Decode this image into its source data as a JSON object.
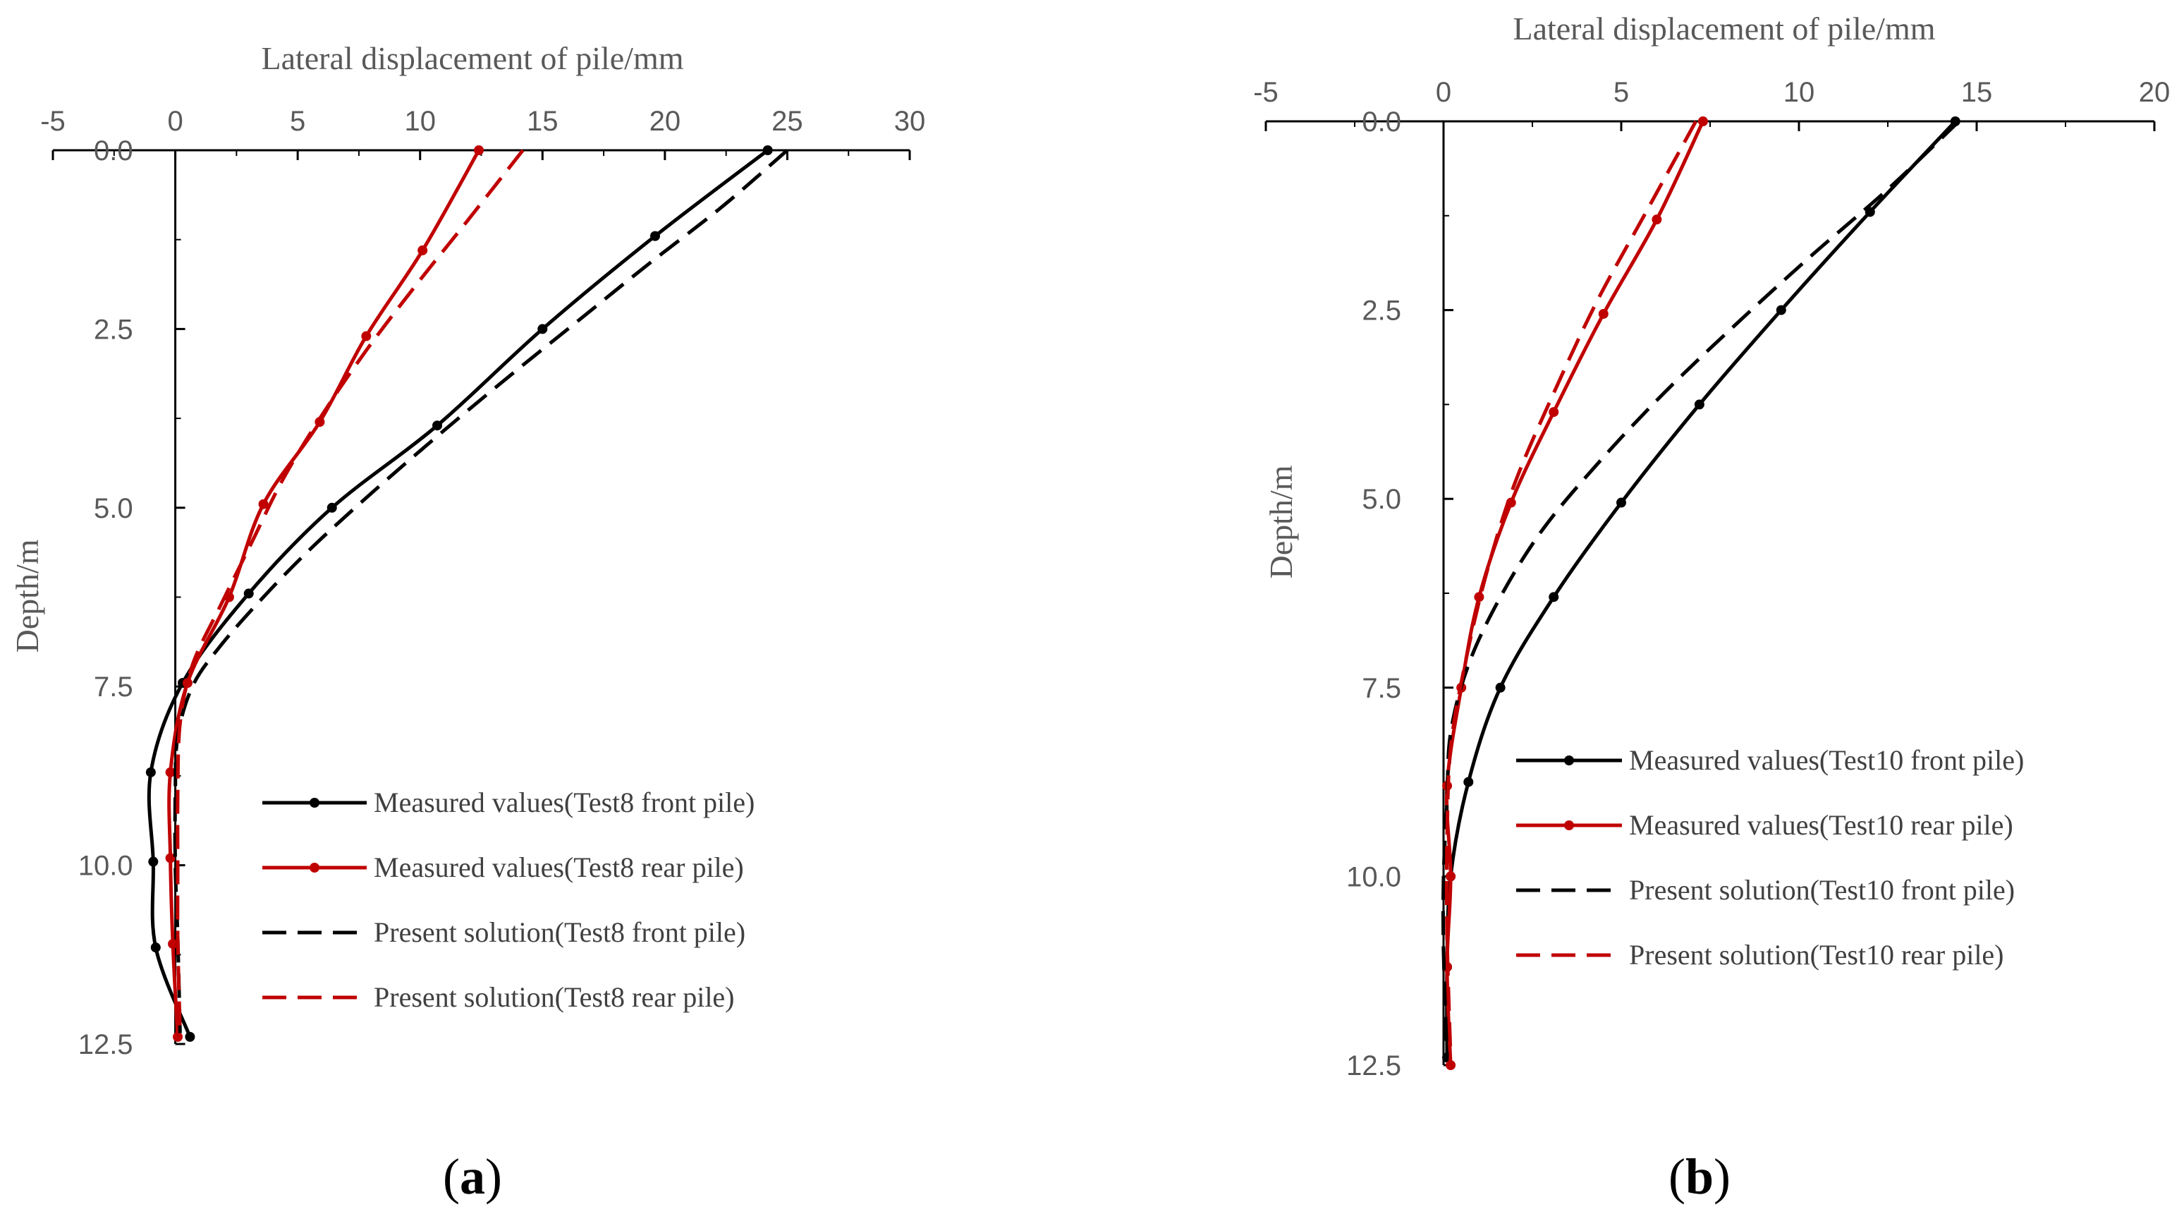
{
  "panels": [
    {
      "label": "a",
      "chart_data": {
        "type": "line",
        "title": "",
        "xlabel": "Lateral displacement of pile/mm",
        "ylabel": "Depth/m",
        "xlim": [
          -5,
          30
        ],
        "ylim": [
          0,
          12.5
        ],
        "x_ticks": [
          "-5",
          "0",
          "5",
          "10",
          "15",
          "20",
          "25",
          "30"
        ],
        "y_ticks": [
          "0.0",
          "2.5",
          "5.0",
          "7.5",
          "10.0",
          "12.5"
        ],
        "x_tick_values": [
          -5,
          0,
          5,
          10,
          15,
          20,
          25,
          30
        ],
        "y_tick_values": [
          0,
          2.5,
          5,
          7.5,
          10,
          12.5
        ],
        "y_inverted": true,
        "legend_position": "bottom-right",
        "series": [
          {
            "name": "Measured values(Test8 front pile)",
            "color": "#000000",
            "style": "solid",
            "markers": true,
            "points": [
              [
                24.2,
                0
              ],
              [
                19.6,
                1.2
              ],
              [
                15.0,
                2.5
              ],
              [
                10.7,
                3.85
              ],
              [
                6.4,
                5.0
              ],
              [
                3.0,
                6.2
              ],
              [
                0.3,
                7.45
              ],
              [
                -1.0,
                8.7
              ],
              [
                -0.9,
                9.95
              ],
              [
                -0.8,
                11.15
              ],
              [
                0.6,
                12.4
              ]
            ]
          },
          {
            "name": "Measured values(Test8 rear pile)",
            "color": "#C00000",
            "style": "solid",
            "markers": true,
            "points": [
              [
                12.4,
                0
              ],
              [
                10.1,
                1.4
              ],
              [
                7.8,
                2.6
              ],
              [
                5.9,
                3.8
              ],
              [
                3.6,
                4.95
              ],
              [
                2.2,
                6.25
              ],
              [
                0.5,
                7.45
              ],
              [
                -0.2,
                8.7
              ],
              [
                -0.2,
                9.9
              ],
              [
                -0.1,
                11.1
              ],
              [
                0.1,
                12.4
              ]
            ]
          },
          {
            "name": "Present solution(Test8 front pile)",
            "color": "#000000",
            "style": "dashed",
            "markers": false,
            "points": [
              [
                25.0,
                0
              ],
              [
                22.3,
                0.8
              ],
              [
                19.3,
                1.6
              ],
              [
                16.4,
                2.4
              ],
              [
                13.5,
                3.2
              ],
              [
                10.7,
                4.0
              ],
              [
                8.0,
                4.8
              ],
              [
                5.6,
                5.55
              ],
              [
                3.6,
                6.25
              ],
              [
                1.8,
                6.95
              ],
              [
                0.7,
                7.5
              ],
              [
                0.1,
                8.2
              ],
              [
                0.0,
                9.0
              ],
              [
                0.0,
                10.0
              ],
              [
                0.1,
                11.0
              ],
              [
                0.2,
                12.4
              ]
            ]
          },
          {
            "name": "Present solution(Test8 rear pile)",
            "color": "#C00000",
            "style": "dashed",
            "markers": false,
            "points": [
              [
                14.2,
                0
              ],
              [
                11.9,
                1.0
              ],
              [
                9.8,
                1.9
              ],
              [
                7.8,
                2.8
              ],
              [
                6.0,
                3.7
              ],
              [
                4.4,
                4.6
              ],
              [
                3.1,
                5.5
              ],
              [
                1.8,
                6.4
              ],
              [
                0.7,
                7.2
              ],
              [
                0.2,
                8.0
              ],
              [
                0.1,
                9.0
              ],
              [
                0.1,
                10.0
              ],
              [
                0.1,
                11.0
              ],
              [
                0.2,
                12.4
              ]
            ]
          }
        ]
      }
    },
    {
      "label": "b",
      "chart_data": {
        "type": "line",
        "title": "",
        "xlabel": "Lateral displacement of pile/mm",
        "ylabel": "Depth/m",
        "xlim": [
          -5,
          20
        ],
        "ylim": [
          0,
          12.5
        ],
        "x_ticks": [
          "-5",
          "0",
          "5",
          "10",
          "15",
          "20"
        ],
        "y_ticks": [
          "0.0",
          "2.5",
          "5.0",
          "7.5",
          "10.0",
          "12.5"
        ],
        "x_tick_values": [
          -5,
          0,
          5,
          10,
          15,
          20
        ],
        "y_tick_values": [
          0,
          2.5,
          5,
          7.5,
          10,
          12.5
        ],
        "y_inverted": true,
        "legend_position": "bottom-right",
        "series": [
          {
            "name": "Measured values(Test10 front pile)",
            "color": "#000000",
            "style": "solid",
            "markers": true,
            "points": [
              [
                14.4,
                0
              ],
              [
                12.0,
                1.2
              ],
              [
                9.5,
                2.5
              ],
              [
                7.2,
                3.75
              ],
              [
                5.0,
                5.05
              ],
              [
                3.1,
                6.3
              ],
              [
                1.6,
                7.5
              ],
              [
                0.7,
                8.75
              ],
              [
                0.2,
                10.0
              ],
              [
                0.1,
                11.2
              ],
              [
                0.1,
                12.4
              ]
            ]
          },
          {
            "name": "Measured values(Test10 rear pile)",
            "color": "#C00000",
            "style": "solid",
            "markers": true,
            "points": [
              [
                7.3,
                0
              ],
              [
                6.0,
                1.3
              ],
              [
                4.5,
                2.55
              ],
              [
                3.1,
                3.85
              ],
              [
                1.9,
                5.05
              ],
              [
                1.0,
                6.3
              ],
              [
                0.5,
                7.5
              ],
              [
                0.1,
                8.8
              ],
              [
                0.2,
                10.0
              ],
              [
                0.1,
                11.2
              ],
              [
                0.2,
                12.5
              ]
            ]
          },
          {
            "name": "Present solution(Test10 front pile)",
            "color": "#000000",
            "style": "dashed",
            "markers": false,
            "points": [
              [
                14.5,
                0
              ],
              [
                12.5,
                0.9
              ],
              [
                10.3,
                1.8
              ],
              [
                8.2,
                2.7
              ],
              [
                6.2,
                3.6
              ],
              [
                4.4,
                4.5
              ],
              [
                2.8,
                5.4
              ],
              [
                1.6,
                6.3
              ],
              [
                0.7,
                7.2
              ],
              [
                0.2,
                8.1
              ],
              [
                0.1,
                9.0
              ],
              [
                0.0,
                10.0
              ],
              [
                0.0,
                11.0
              ],
              [
                0.1,
                12.4
              ]
            ]
          },
          {
            "name": "Present solution(Test10 rear pile)",
            "color": "#C00000",
            "style": "dashed",
            "markers": false,
            "points": [
              [
                7.1,
                0
              ],
              [
                5.7,
                1.2
              ],
              [
                4.3,
                2.4
              ],
              [
                3.1,
                3.6
              ],
              [
                2.0,
                4.8
              ],
              [
                1.2,
                6.0
              ],
              [
                0.6,
                7.2
              ],
              [
                0.2,
                8.3
              ],
              [
                0.1,
                9.5
              ],
              [
                0.1,
                10.8
              ],
              [
                0.2,
                12.4
              ]
            ]
          }
        ]
      }
    }
  ]
}
